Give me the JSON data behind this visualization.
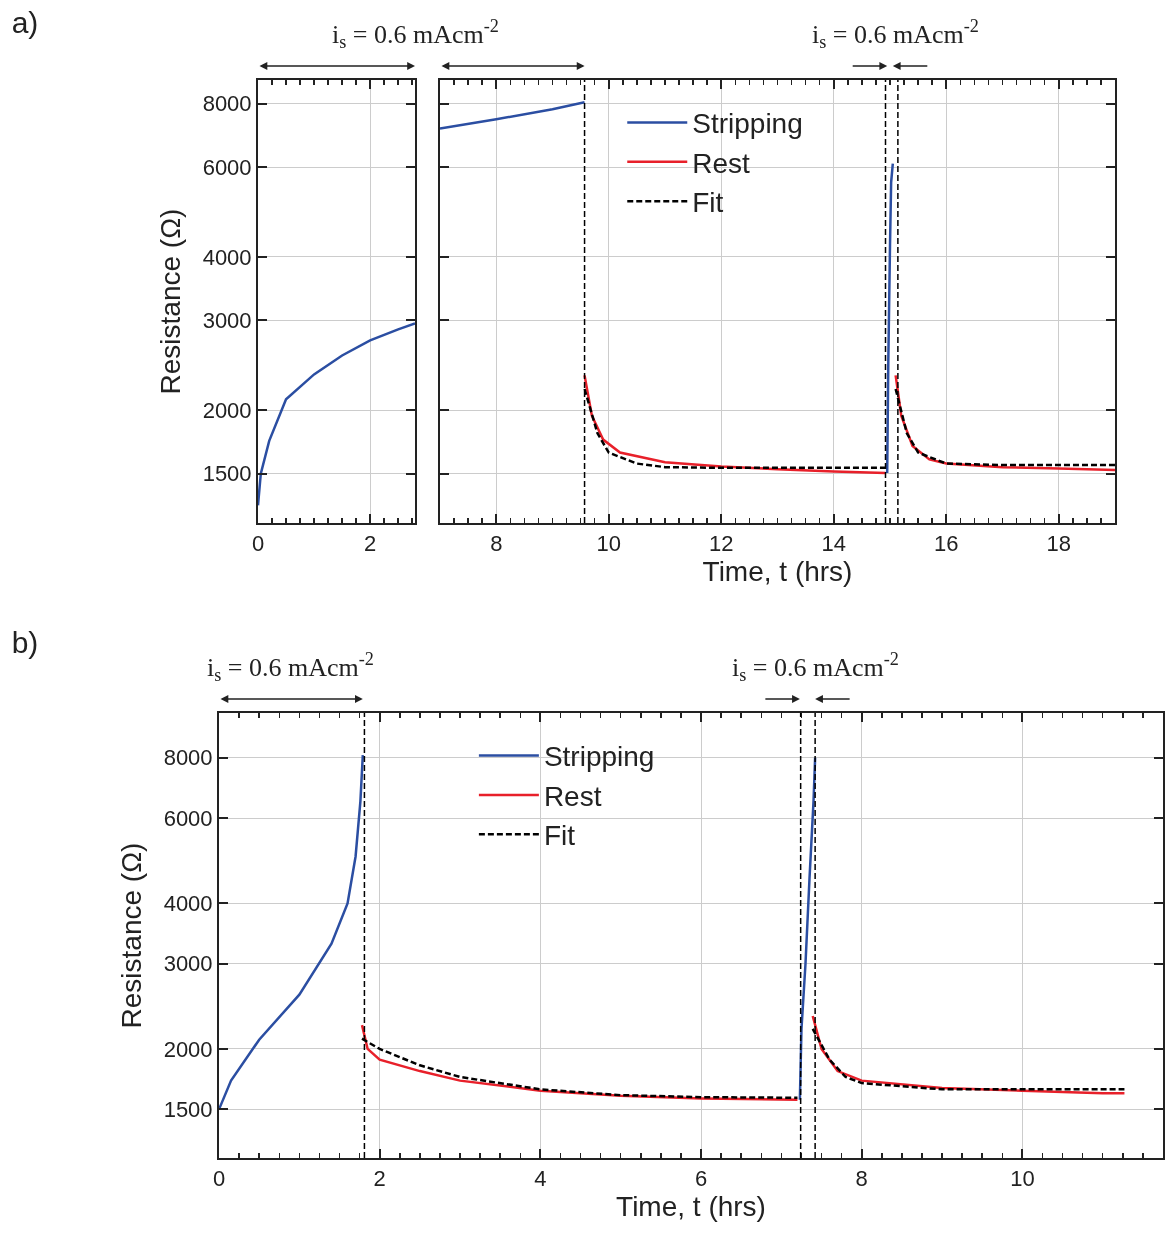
{
  "chart_data": [
    {
      "type": "line",
      "title": "a)",
      "ylabel": "Resistance (Ω)",
      "xlim": [
        0,
        2.8
      ],
      "xticks": [
        0,
        2
      ],
      "ylim": [
        1200,
        8900
      ],
      "yticks": [
        1500,
        2000,
        3000,
        4000,
        6000,
        8000
      ],
      "log": "y",
      "grid": true,
      "annotations": [
        "i$_{s}$ = 0.6 mAcm$^{-2}$"
      ],
      "series": [
        {
          "color": "#2b4ea2",
          "x": [
            0,
            0.05,
            0.2,
            0.5,
            1,
            1.5,
            2,
            2.5,
            2.8
          ],
          "values": [
            1300,
            1500,
            1740,
            2100,
            2350,
            2560,
            2740,
            2880,
            2960
          ]
        }
      ]
    },
    {
      "type": "line",
      "xlabel": "Time, t (hrs)",
      "xlim": [
        7,
        19
      ],
      "xticks": [
        8,
        10,
        12,
        14,
        16,
        18
      ],
      "ylim": [
        1200,
        8900
      ],
      "yticks": [
        1500,
        2000,
        3000,
        4000,
        6000,
        8000
      ],
      "log": "y",
      "grid": true,
      "legend": "top",
      "tick_labels": "x",
      "annotations": [
        "i$_{s}$ = 0.6 mAcm$^{-2}$"
      ],
      "ref_lines": [
        {
          "axis": "x",
          "value": 9.57,
          "color": "#000000",
          "line_style": "dashed"
        },
        {
          "axis": "x",
          "value": 14.92,
          "color": "#000000",
          "line_style": "dashed"
        },
        {
          "axis": "x",
          "value": 15.14,
          "color": "#000000",
          "line_style": "dashed"
        }
      ],
      "series": [
        {
          "name": "Stripping",
          "color": "#2b4ea2",
          "x": [
            7,
            8,
            9,
            9.57,
            12,
            14.95,
            14.97,
            15.0,
            15.02,
            15.05
          ],
          "values": [
            7150,
            7450,
            7800,
            8050,
            null,
            1505,
            2500,
            4200,
            5600,
            6100
          ]
        },
        {
          "name": "Rest",
          "color": "#e8202a",
          "x": [
            9.57,
            9.7,
            9.9,
            10.2,
            11,
            12,
            13,
            14,
            14.92,
            15.0,
            15.1,
            15.2,
            15.4,
            15.7,
            16,
            17,
            18,
            19
          ],
          "values": [
            2340,
            1950,
            1750,
            1650,
            1580,
            1550,
            1530,
            1515,
            1505,
            null,
            2340,
            1950,
            1700,
            1600,
            1570,
            1545,
            1535,
            1525
          ]
        },
        {
          "name": "Fit",
          "color": "#000000",
          "line_style": "dashed",
          "x": [
            9.57,
            9.8,
            10,
            10.5,
            11,
            12,
            13,
            14.92,
            15.0,
            15.1,
            15.3,
            15.5,
            16,
            17,
            18,
            19
          ],
          "values": [
            2200,
            1800,
            1650,
            1570,
            1545,
            1540,
            1540,
            1540,
            null,
            2200,
            1800,
            1650,
            1570,
            1560,
            1560,
            1560
          ]
        }
      ]
    },
    {
      "type": "line",
      "title": "b)",
      "xlabel": "Time, t (hrs)",
      "ylabel": "Resistance (Ω)",
      "xlim": [
        0,
        11.75
      ],
      "xticks": [
        0,
        2,
        4,
        6,
        8,
        10
      ],
      "ylim": [
        1190,
        9900
      ],
      "yticks": [
        1500,
        2000,
        3000,
        4000,
        6000,
        8000
      ],
      "log": "y",
      "grid": true,
      "legend": "top",
      "annotations": [
        "i$_{s}$ = 0.6 mAcm$^{-2}$",
        "i$_{s}$ = 0.6 mAcm$^{-2}$"
      ],
      "ref_lines": [
        {
          "axis": "x",
          "value": 1.81,
          "color": "#000000",
          "line_style": "dashed"
        },
        {
          "axis": "x",
          "value": 7.24,
          "color": "#000000",
          "line_style": "dashed"
        },
        {
          "axis": "x",
          "value": 7.42,
          "color": "#000000",
          "line_style": "dashed"
        }
      ],
      "series": [
        {
          "name": "Stripping",
          "color": "#2b4ea2",
          "x": [
            0,
            0.15,
            0.5,
            1.0,
            1.4,
            1.6,
            1.7,
            1.76,
            1.79,
            4,
            7.23,
            7.25,
            7.3,
            7.35,
            7.4,
            7.42
          ],
          "values": [
            1500,
            1720,
            2090,
            2590,
            3300,
            4000,
            5000,
            6500,
            8100,
            null,
            1570,
            2200,
            3000,
            4500,
            6500,
            8000
          ]
        },
        {
          "name": "Rest",
          "color": "#e8202a",
          "x": [
            1.78,
            1.85,
            2,
            2.5,
            3,
            4,
            5,
            6,
            7.2,
            7.3,
            7.39,
            7.5,
            7.7,
            8,
            9,
            10,
            11,
            11.27
          ],
          "values": [
            2240,
            2000,
            1900,
            1800,
            1720,
            1640,
            1600,
            1580,
            1570,
            null,
            2340,
            2000,
            1800,
            1720,
            1660,
            1640,
            1620,
            1620
          ]
        },
        {
          "name": "Fit",
          "color": "#000000",
          "line_style": "dashed",
          "x": [
            1.78,
            2,
            2.5,
            3,
            4,
            5,
            6,
            7.2,
            7.3,
            7.39,
            7.6,
            7.8,
            8,
            9,
            10,
            11,
            11.27
          ],
          "values": [
            2100,
            2000,
            1850,
            1750,
            1650,
            1605,
            1590,
            1585,
            null,
            2200,
            1900,
            1750,
            1700,
            1650,
            1650,
            1650,
            1650
          ]
        }
      ]
    }
  ]
}
